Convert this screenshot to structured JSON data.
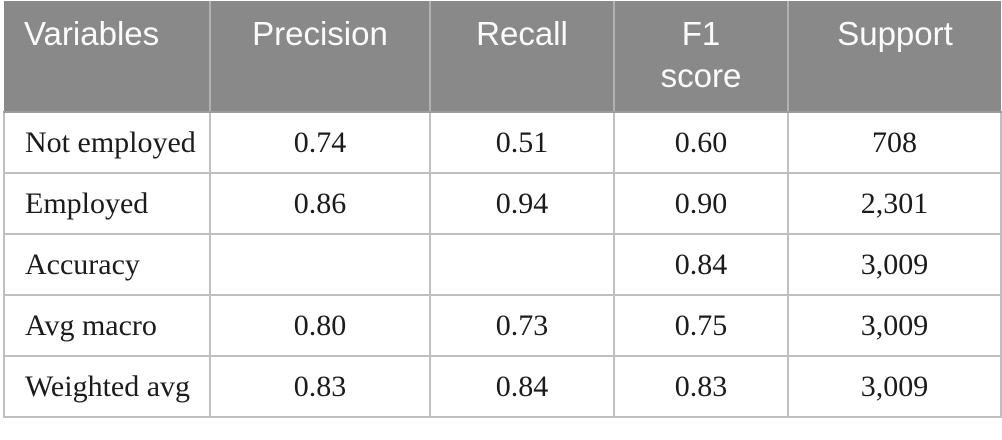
{
  "colors": {
    "header_background": "#898989",
    "header_text": "#fbfbfb",
    "body_text": "#1b1b1b",
    "cell_border": "#bfbfbf",
    "header_divider": "#9c9c9c"
  },
  "table": {
    "header": [
      "Variables",
      "Precision",
      "Recall",
      "F1 score",
      "Support"
    ],
    "rows": [
      {
        "label": "Not employed",
        "precision": "0.74",
        "recall": "0.51",
        "f1_score": "0.60",
        "support": "708"
      },
      {
        "label": "Employed",
        "precision": "0.86",
        "recall": "0.94",
        "f1_score": "0.90",
        "support": "2,301"
      },
      {
        "label": "Accuracy",
        "precision": "",
        "recall": "",
        "f1_score": "0.84",
        "support": "3,009"
      },
      {
        "label": "Avg macro",
        "precision": "0.80",
        "recall": "0.73",
        "f1_score": "0.75",
        "support": "3,009"
      },
      {
        "label": "Weighted avg",
        "precision": "0.83",
        "recall": "0.84",
        "f1_score": "0.83",
        "support": "3,009"
      }
    ]
  }
}
